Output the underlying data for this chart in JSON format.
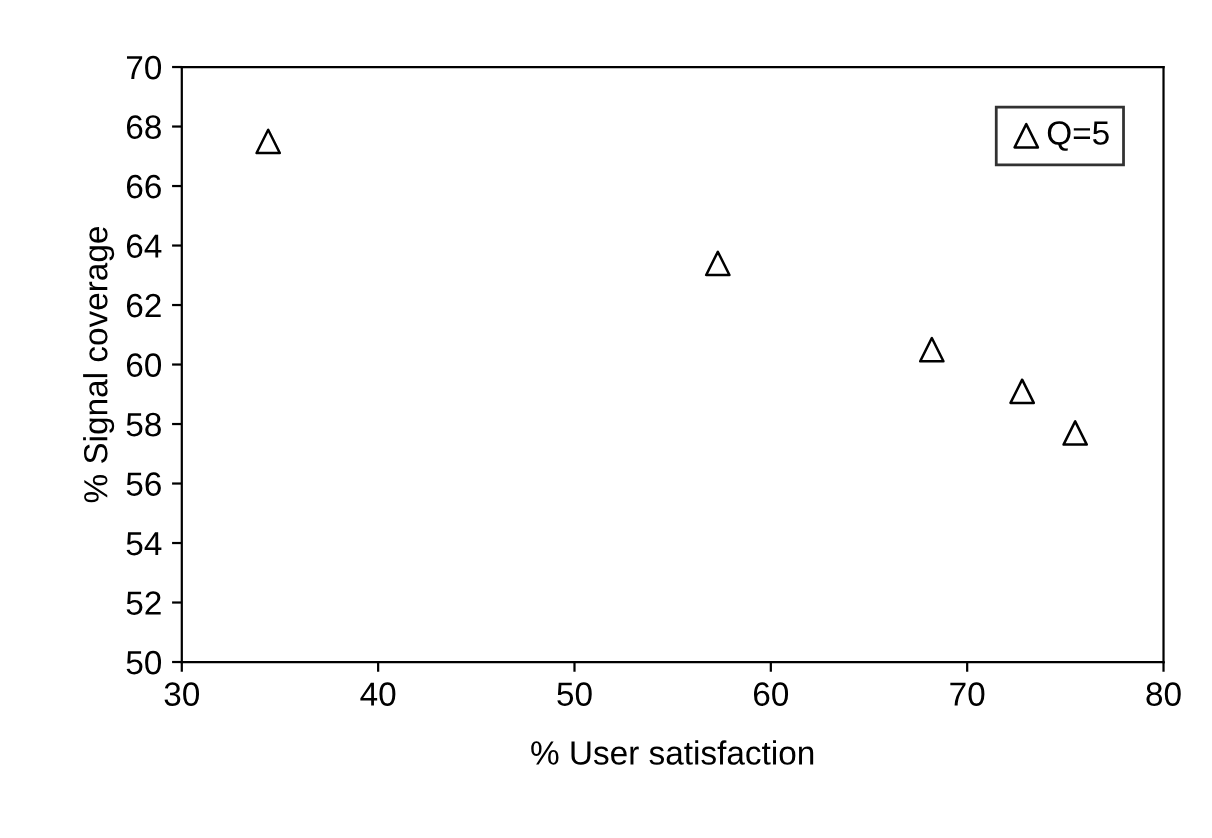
{
  "chart_data": {
    "type": "scatter",
    "xlabel": "% User satisfaction",
    "ylabel": "% Signal coverage",
    "series": [
      {
        "name": "Q=5",
        "color": "#000000",
        "x": [
          34.4,
          57.3,
          68.2,
          72.8,
          75.5
        ],
        "values": [
          67.5,
          63.4,
          60.5,
          59.1,
          57.7
        ]
      }
    ],
    "xlim": [
      30,
      80
    ],
    "xticks": [
      30,
      40,
      50,
      60,
      70,
      80
    ],
    "ylim": [
      50,
      70
    ],
    "yticks": [
      50,
      52,
      54,
      56,
      58,
      60,
      62,
      64,
      66,
      68,
      70
    ],
    "marker": "triangle",
    "legend": "top right",
    "grid": false
  }
}
